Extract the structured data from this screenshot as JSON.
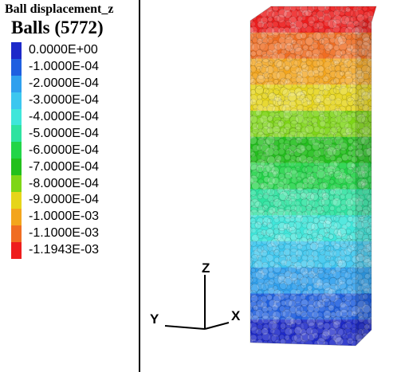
{
  "legend": {
    "title": "Ball displacement_z",
    "subtitle": "Balls (5772)",
    "entries": [
      {
        "label": "0.0000E+00",
        "color": "#1d29c9"
      },
      {
        "label": "-1.0000E-04",
        "color": "#1f5fe0"
      },
      {
        "label": "-2.0000E-04",
        "color": "#2fa0ee"
      },
      {
        "label": "-3.0000E-04",
        "color": "#3cc7ef"
      },
      {
        "label": "-4.0000E-04",
        "color": "#3fe6da"
      },
      {
        "label": "-5.0000E-04",
        "color": "#2ee3a0"
      },
      {
        "label": "-6.0000E-04",
        "color": "#22d548"
      },
      {
        "label": "-7.0000E-04",
        "color": "#22c01c"
      },
      {
        "label": "-8.0000E-04",
        "color": "#7ed616"
      },
      {
        "label": "-9.0000E-04",
        "color": "#e6d51a"
      },
      {
        "label": "-1.0000E-03",
        "color": "#f3a51d"
      },
      {
        "label": "-1.1000E-03",
        "color": "#f06d22"
      },
      {
        "label": "-1.1943E-03",
        "color": "#ee1d1d"
      }
    ]
  },
  "axes": {
    "z_label": "Z",
    "y_label": "Y",
    "x_label": "X"
  }
}
